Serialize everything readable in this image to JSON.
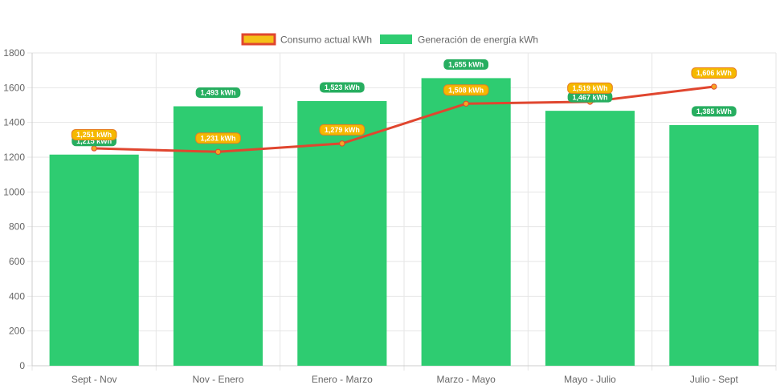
{
  "chart_data": {
    "type": "bar",
    "categories": [
      "Sept - Nov",
      "Nov - Enero",
      "Enero - Marzo",
      "Marzo - Mayo",
      "Mayo - Julio",
      "Julio - Sept"
    ],
    "ylim": [
      0,
      1800
    ],
    "yticks": [
      0,
      200,
      400,
      600,
      800,
      1000,
      1200,
      1400,
      1600,
      1800
    ],
    "grid": true,
    "legend_position": "top",
    "series": [
      {
        "name": "Consumo actual kWh",
        "type": "line",
        "color": "#e0462f",
        "legend_fill": "#f5c018",
        "point_color": "#f5a623",
        "label_fill": "#f5b800",
        "label_border": "#e67e22",
        "values": [
          1251,
          1231,
          1279,
          1508,
          1519,
          1606
        ],
        "labels": [
          "1,251 kWh",
          "1,231 kWh",
          "1,279 kWh",
          "1,508 kWh",
          "1,519 kWh",
          "1,606 kWh"
        ]
      },
      {
        "name": "Generación de energía kWh",
        "type": "bar",
        "color": "#2ecc71",
        "label_fill": "#27ae60",
        "values": [
          1215,
          1493,
          1523,
          1655,
          1467,
          1385
        ],
        "labels": [
          "1,215 kWh",
          "1,493 kWh",
          "1,523 kWh",
          "1,655 kWh",
          "1,467 kWh",
          "1,385 kWh"
        ]
      }
    ]
  }
}
